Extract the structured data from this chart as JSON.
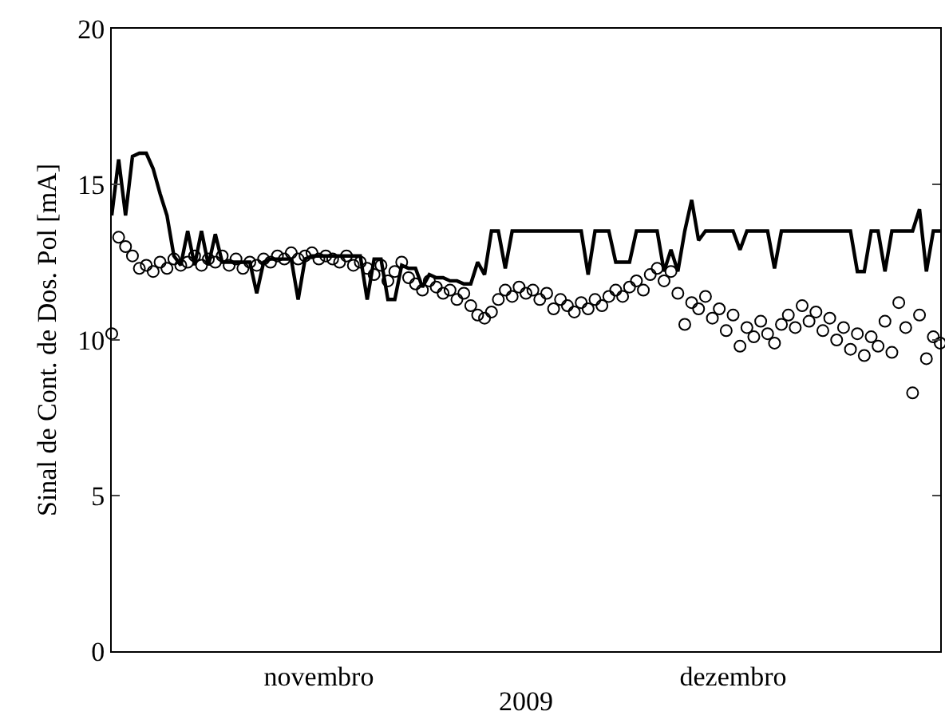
{
  "chart_data": {
    "type": "line",
    "xlabel": "2009",
    "ylabel": "Sinal de Cont. de Dos. Pol [mA]",
    "categories": [
      null,
      null,
      null,
      null,
      null,
      null,
      null,
      null,
      null,
      null,
      null,
      null,
      null,
      null,
      null,
      null,
      null,
      null,
      null,
      null,
      null,
      null,
      null,
      null,
      null,
      null,
      null,
      null,
      null,
      null,
      "novembro",
      null,
      null,
      null,
      null,
      null,
      null,
      null,
      null,
      null,
      null,
      null,
      null,
      null,
      null,
      null,
      null,
      null,
      null,
      null,
      null,
      null,
      null,
      null,
      null,
      null,
      null,
      null,
      null,
      null,
      null,
      null,
      null,
      null,
      null,
      null,
      null,
      null,
      null,
      null,
      null,
      null,
      null,
      null,
      null,
      null,
      null,
      null,
      null,
      null,
      null,
      null,
      null,
      null,
      null,
      null,
      null,
      null,
      null,
      null,
      "dezembro",
      null,
      null,
      null,
      null,
      null,
      null,
      null,
      null,
      null,
      null,
      null,
      null,
      null,
      null,
      null,
      null,
      null,
      null,
      null,
      null,
      null,
      null,
      null,
      null,
      null,
      null,
      null,
      null,
      null,
      null
    ],
    "ylim": [
      0,
      20
    ],
    "yticks": [
      0,
      5,
      10,
      15,
      20
    ],
    "grid": false,
    "series": [
      {
        "type": "line",
        "color": "#000000",
        "line_style": "solid",
        "marker": "none",
        "values": [
          14.0,
          15.8,
          14.0,
          15.9,
          16.0,
          16.0,
          15.5,
          14.7,
          14.0,
          12.7,
          12.4,
          13.5,
          12.4,
          13.5,
          12.4,
          13.4,
          12.5,
          12.5,
          12.5,
          12.5,
          12.5,
          11.5,
          12.5,
          12.6,
          12.6,
          12.6,
          12.6,
          11.3,
          12.6,
          12.7,
          12.7,
          12.7,
          12.7,
          12.7,
          12.7,
          12.7,
          12.7,
          11.3,
          12.6,
          12.6,
          11.3,
          11.3,
          12.4,
          12.3,
          12.3,
          11.7,
          12.1,
          12.0,
          12.0,
          11.9,
          11.9,
          11.8,
          11.8,
          12.5,
          12.1,
          13.5,
          13.5,
          12.3,
          13.5,
          13.5,
          13.5,
          13.5,
          13.5,
          13.5,
          13.5,
          13.5,
          13.5,
          13.5,
          13.5,
          12.1,
          13.5,
          13.5,
          13.5,
          12.5,
          12.5,
          12.5,
          13.5,
          13.5,
          13.5,
          13.5,
          12.2,
          12.9,
          12.2,
          13.5,
          14.5,
          13.2,
          13.5,
          13.5,
          13.5,
          13.5,
          13.5,
          12.9,
          13.5,
          13.5,
          13.5,
          13.5,
          12.3,
          13.5,
          13.5,
          13.5,
          13.5,
          13.5,
          13.5,
          13.5,
          13.5,
          13.5,
          13.5,
          13.5,
          12.2,
          12.2,
          13.5,
          13.5,
          12.2,
          13.5,
          13.5,
          13.5,
          13.5,
          14.2,
          12.2,
          13.5,
          13.5
        ]
      },
      {
        "type": "scatter",
        "color": "#000000",
        "marker": "circle",
        "values": [
          10.2,
          13.3,
          13.0,
          12.7,
          12.3,
          12.4,
          12.2,
          12.5,
          12.3,
          12.6,
          12.4,
          12.5,
          12.7,
          12.4,
          12.6,
          12.5,
          12.7,
          12.4,
          12.6,
          12.3,
          12.5,
          12.4,
          12.6,
          12.5,
          12.7,
          12.6,
          12.8,
          12.6,
          12.7,
          12.8,
          12.6,
          12.7,
          12.6,
          12.5,
          12.7,
          12.4,
          12.5,
          12.3,
          12.1,
          12.4,
          11.9,
          12.2,
          12.5,
          12.0,
          11.8,
          11.6,
          11.9,
          11.7,
          11.5,
          11.6,
          11.3,
          11.5,
          11.1,
          10.8,
          10.7,
          10.9,
          11.3,
          11.6,
          11.4,
          11.7,
          11.5,
          11.6,
          11.3,
          11.5,
          11.0,
          11.3,
          11.1,
          10.9,
          11.2,
          11.0,
          11.3,
          11.1,
          11.4,
          11.6,
          11.4,
          11.7,
          11.9,
          11.6,
          12.1,
          12.3,
          11.9,
          12.2,
          11.5,
          10.5,
          11.2,
          11.0,
          11.4,
          10.7,
          11.0,
          10.3,
          10.8,
          9.8,
          10.4,
          10.1,
          10.6,
          10.2,
          9.9,
          10.5,
          10.8,
          10.4,
          11.1,
          10.6,
          10.9,
          10.3,
          10.7,
          10.0,
          10.4,
          9.7,
          10.2,
          9.5,
          10.1,
          9.8,
          10.6,
          9.6,
          11.2,
          10.4,
          8.3,
          10.8,
          9.4,
          10.1,
          9.9
        ]
      }
    ]
  }
}
